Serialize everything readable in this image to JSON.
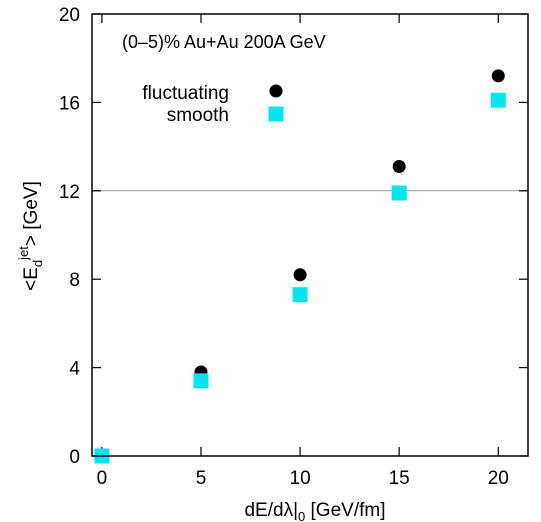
{
  "chart_data": {
    "type": "scatter",
    "annotation": "(0–5)% Au+Au 200A GeV",
    "xlabel": {
      "prefix": "dE/dλ|",
      "sub": "0",
      "suffix": " [GeV/fm]"
    },
    "ylabel": {
      "prefix": "<E",
      "sub": "d",
      "sup": "jet",
      "suffix": "> [GeV]"
    },
    "xlim": [
      -0.5,
      21.5
    ],
    "ylim": [
      0,
      20
    ],
    "xticks": [
      0,
      5,
      10,
      15,
      20
    ],
    "yticks": [
      0,
      4,
      8,
      12,
      16,
      20
    ],
    "reference_line_y": 12,
    "grid": false,
    "legend_position": "top-left",
    "series": [
      {
        "name": "fluctuating",
        "marker": "circle",
        "color": "#000000",
        "x": [
          5,
          10,
          15,
          20
        ],
        "y": [
          3.8,
          8.2,
          13.1,
          17.2
        ]
      },
      {
        "name": "smooth",
        "marker": "square",
        "color": "#00e5ee",
        "x": [
          0,
          5,
          10,
          15,
          20
        ],
        "y": [
          0.0,
          3.4,
          7.3,
          11.9,
          16.1
        ]
      }
    ]
  }
}
